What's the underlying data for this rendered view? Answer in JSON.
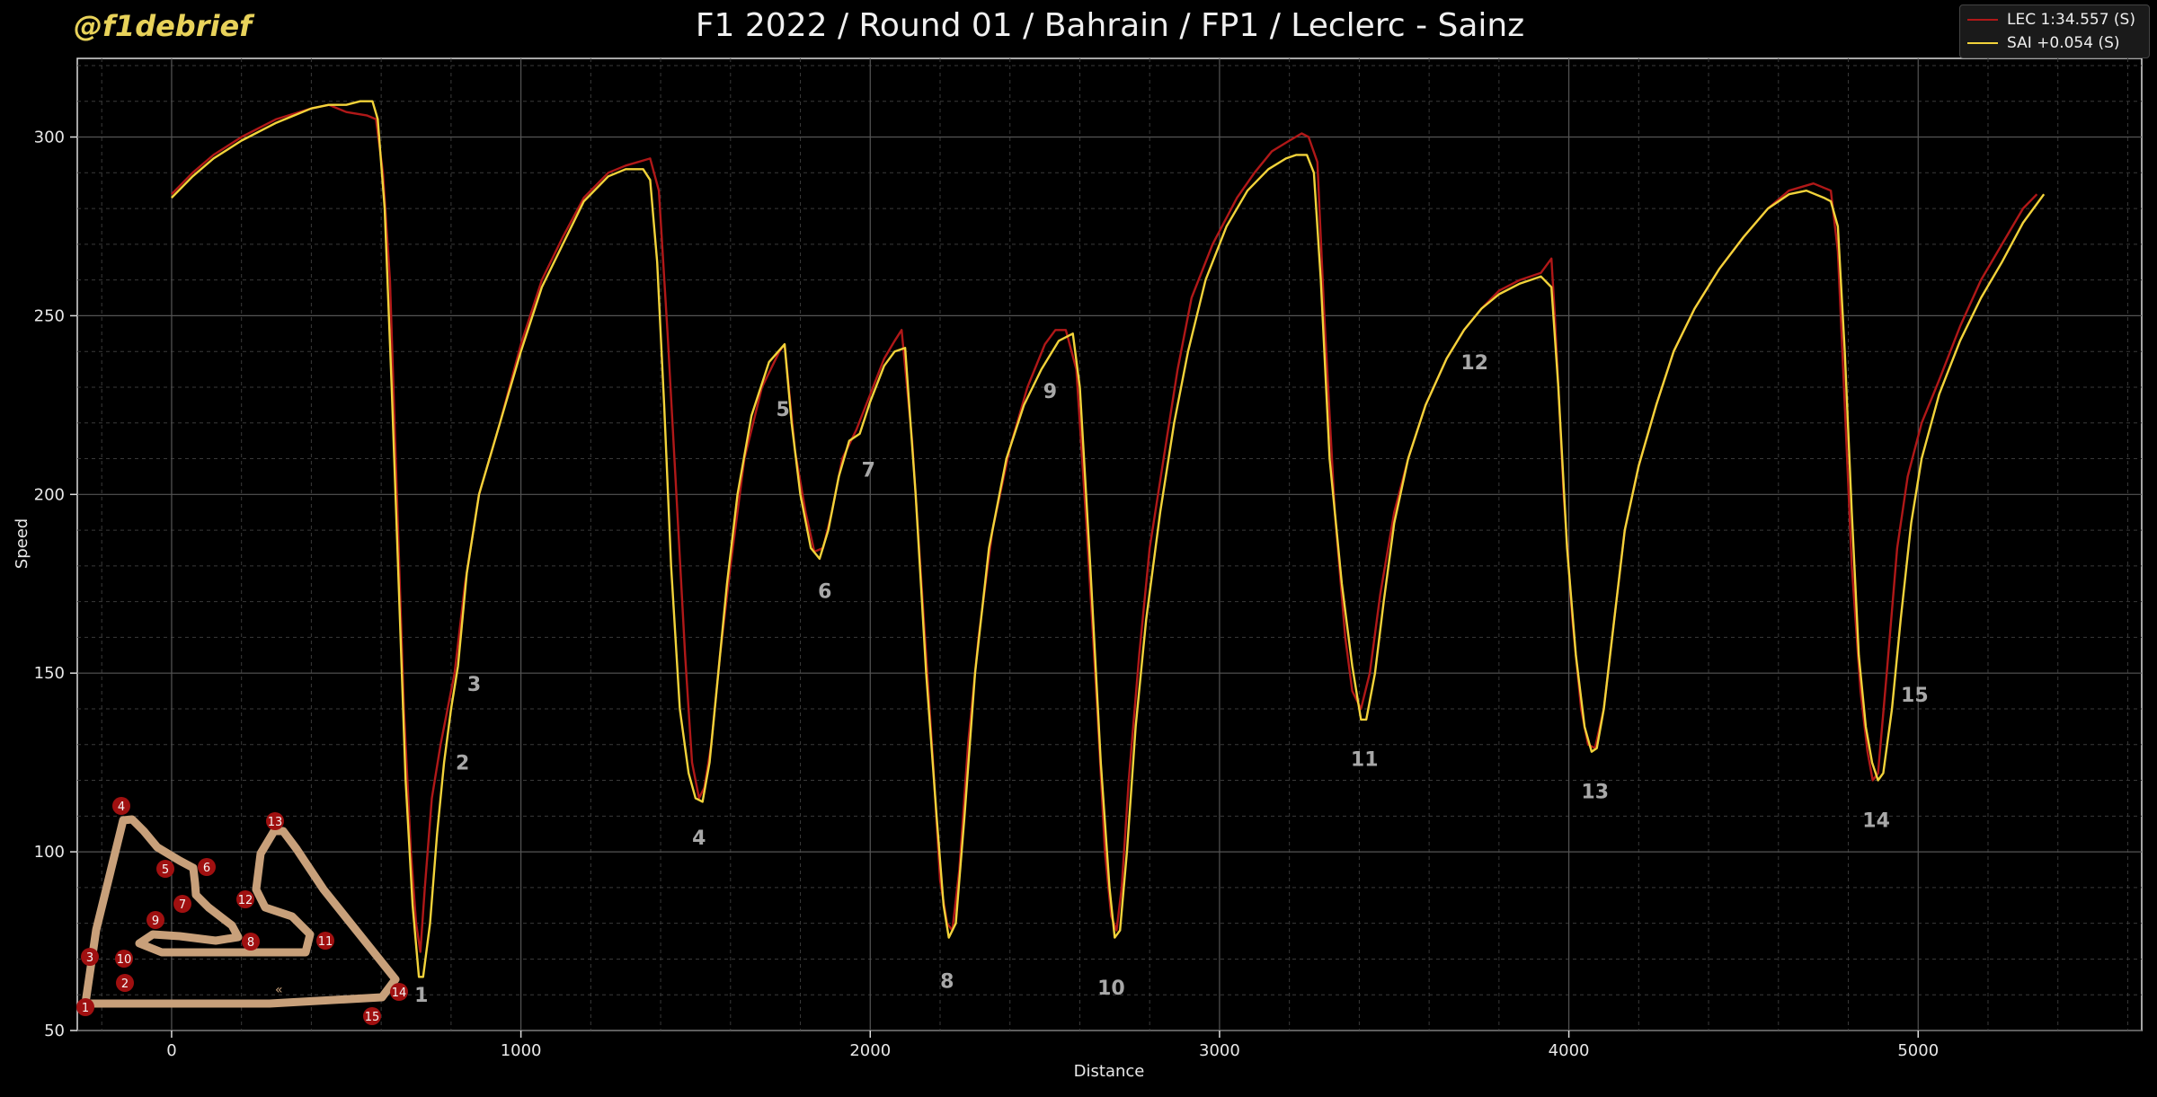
{
  "brand": "@f1debrief",
  "chart_data": {
    "type": "line",
    "title": "F1 2022 / Round 01 / Bahrain / FP1 / Leclerc - Sainz",
    "xlabel": "Distance",
    "ylabel": "Speed",
    "xlim": [
      -270,
      5640
    ],
    "ylim": [
      50,
      322
    ],
    "xticks": [
      0,
      1000,
      2000,
      3000,
      4000,
      5000
    ],
    "yticks": [
      50,
      100,
      150,
      200,
      250,
      300
    ],
    "grid": true,
    "legend_position": "top-right",
    "series": [
      {
        "name": "LEC 1:34.557 (S)",
        "color": "#b01818",
        "points": [
          [
            0,
            284
          ],
          [
            60,
            290
          ],
          [
            120,
            295
          ],
          [
            200,
            300
          ],
          [
            300,
            305
          ],
          [
            400,
            308
          ],
          [
            450,
            309
          ],
          [
            500,
            307
          ],
          [
            560,
            306
          ],
          [
            585,
            305
          ],
          [
            605,
            290
          ],
          [
            625,
            260
          ],
          [
            645,
            200
          ],
          [
            665,
            140
          ],
          [
            685,
            100
          ],
          [
            700,
            80
          ],
          [
            712,
            72
          ],
          [
            725,
            90
          ],
          [
            745,
            115
          ],
          [
            770,
            130
          ],
          [
            790,
            140
          ],
          [
            810,
            150
          ],
          [
            840,
            175
          ],
          [
            880,
            200
          ],
          [
            940,
            220
          ],
          [
            1000,
            242
          ],
          [
            1060,
            260
          ],
          [
            1120,
            272
          ],
          [
            1180,
            283
          ],
          [
            1250,
            290
          ],
          [
            1300,
            292
          ],
          [
            1370,
            294
          ],
          [
            1395,
            285
          ],
          [
            1420,
            245
          ],
          [
            1445,
            200
          ],
          [
            1470,
            155
          ],
          [
            1490,
            125
          ],
          [
            1510,
            115
          ],
          [
            1525,
            118
          ],
          [
            1545,
            130
          ],
          [
            1570,
            155
          ],
          [
            1600,
            180
          ],
          [
            1640,
            210
          ],
          [
            1690,
            230
          ],
          [
            1740,
            240
          ],
          [
            1755,
            242
          ],
          [
            1785,
            212
          ],
          [
            1815,
            195
          ],
          [
            1840,
            184
          ],
          [
            1865,
            185
          ],
          [
            1890,
            195
          ],
          [
            1920,
            210
          ],
          [
            1960,
            218
          ],
          [
            2000,
            228
          ],
          [
            2040,
            238
          ],
          [
            2070,
            243
          ],
          [
            2090,
            246
          ],
          [
            2120,
            215
          ],
          [
            2150,
            170
          ],
          [
            2180,
            125
          ],
          [
            2200,
            92
          ],
          [
            2220,
            80
          ],
          [
            2235,
            78
          ],
          [
            2255,
            95
          ],
          [
            2280,
            130
          ],
          [
            2310,
            160
          ],
          [
            2350,
            190
          ],
          [
            2400,
            213
          ],
          [
            2450,
            230
          ],
          [
            2500,
            242
          ],
          [
            2530,
            246
          ],
          [
            2560,
            246
          ],
          [
            2590,
            235
          ],
          [
            2620,
            190
          ],
          [
            2650,
            140
          ],
          [
            2672,
            100
          ],
          [
            2690,
            82
          ],
          [
            2705,
            78
          ],
          [
            2720,
            90
          ],
          [
            2740,
            120
          ],
          [
            2770,
            155
          ],
          [
            2800,
            185
          ],
          [
            2840,
            210
          ],
          [
            2880,
            235
          ],
          [
            2920,
            255
          ],
          [
            2980,
            270
          ],
          [
            3050,
            283
          ],
          [
            3100,
            290
          ],
          [
            3150,
            296
          ],
          [
            3200,
            299
          ],
          [
            3235,
            301
          ],
          [
            3255,
            300
          ],
          [
            3280,
            293
          ],
          [
            3300,
            250
          ],
          [
            3330,
            195
          ],
          [
            3360,
            160
          ],
          [
            3380,
            145
          ],
          [
            3405,
            140
          ],
          [
            3430,
            150
          ],
          [
            3460,
            172
          ],
          [
            3500,
            195
          ],
          [
            3540,
            210
          ],
          [
            3590,
            225
          ],
          [
            3650,
            238
          ],
          [
            3700,
            246
          ],
          [
            3750,
            252
          ],
          [
            3800,
            257
          ],
          [
            3860,
            260
          ],
          [
            3920,
            262
          ],
          [
            3950,
            266
          ],
          [
            3960,
            250
          ],
          [
            3985,
            200
          ],
          [
            4010,
            165
          ],
          [
            4035,
            140
          ],
          [
            4055,
            130
          ],
          [
            4075,
            129
          ],
          [
            4100,
            140
          ],
          [
            4130,
            165
          ],
          [
            4160,
            190
          ],
          [
            4200,
            208
          ],
          [
            4250,
            225
          ],
          [
            4300,
            240
          ],
          [
            4360,
            252
          ],
          [
            4430,
            263
          ],
          [
            4500,
            272
          ],
          [
            4570,
            280
          ],
          [
            4630,
            285
          ],
          [
            4700,
            287
          ],
          [
            4750,
            285
          ],
          [
            4770,
            268
          ],
          [
            4790,
            225
          ],
          [
            4810,
            180
          ],
          [
            4835,
            145
          ],
          [
            4855,
            128
          ],
          [
            4870,
            120
          ],
          [
            4885,
            122
          ],
          [
            4910,
            150
          ],
          [
            4940,
            185
          ],
          [
            4970,
            205
          ],
          [
            5010,
            220
          ],
          [
            5060,
            232
          ],
          [
            5120,
            247
          ],
          [
            5180,
            260
          ],
          [
            5240,
            270
          ],
          [
            5300,
            280
          ],
          [
            5340,
            284
          ]
        ]
      },
      {
        "name": "SAI +0.054 (S)",
        "color": "#f2d33a",
        "points": [
          [
            0,
            283
          ],
          [
            60,
            289
          ],
          [
            120,
            294
          ],
          [
            200,
            299
          ],
          [
            300,
            304
          ],
          [
            400,
            308
          ],
          [
            450,
            309
          ],
          [
            500,
            309
          ],
          [
            540,
            310
          ],
          [
            575,
            310
          ],
          [
            590,
            305
          ],
          [
            610,
            280
          ],
          [
            630,
            230
          ],
          [
            650,
            175
          ],
          [
            670,
            120
          ],
          [
            690,
            85
          ],
          [
            708,
            65
          ],
          [
            720,
            65
          ],
          [
            740,
            80
          ],
          [
            760,
            105
          ],
          [
            780,
            125
          ],
          [
            800,
            140
          ],
          [
            820,
            152
          ],
          [
            845,
            178
          ],
          [
            880,
            200
          ],
          [
            940,
            220
          ],
          [
            1000,
            240
          ],
          [
            1060,
            258
          ],
          [
            1120,
            270
          ],
          [
            1180,
            282
          ],
          [
            1250,
            289
          ],
          [
            1300,
            291
          ],
          [
            1350,
            291
          ],
          [
            1370,
            288
          ],
          [
            1390,
            265
          ],
          [
            1410,
            225
          ],
          [
            1430,
            180
          ],
          [
            1455,
            140
          ],
          [
            1480,
            122
          ],
          [
            1500,
            115
          ],
          [
            1520,
            114
          ],
          [
            1540,
            125
          ],
          [
            1565,
            150
          ],
          [
            1590,
            175
          ],
          [
            1620,
            200
          ],
          [
            1660,
            222
          ],
          [
            1710,
            237
          ],
          [
            1755,
            242
          ],
          [
            1775,
            220
          ],
          [
            1800,
            200
          ],
          [
            1830,
            185
          ],
          [
            1855,
            182
          ],
          [
            1880,
            190
          ],
          [
            1910,
            205
          ],
          [
            1940,
            215
          ],
          [
            1970,
            217
          ],
          [
            2000,
            226
          ],
          [
            2040,
            236
          ],
          [
            2070,
            240
          ],
          [
            2100,
            241
          ],
          [
            2130,
            200
          ],
          [
            2160,
            150
          ],
          [
            2190,
            110
          ],
          [
            2210,
            85
          ],
          [
            2225,
            76
          ],
          [
            2245,
            80
          ],
          [
            2270,
            110
          ],
          [
            2300,
            150
          ],
          [
            2340,
            185
          ],
          [
            2390,
            210
          ],
          [
            2440,
            225
          ],
          [
            2490,
            235
          ],
          [
            2540,
            243
          ],
          [
            2580,
            245
          ],
          [
            2600,
            230
          ],
          [
            2630,
            180
          ],
          [
            2660,
            125
          ],
          [
            2685,
            90
          ],
          [
            2700,
            76
          ],
          [
            2715,
            78
          ],
          [
            2735,
            100
          ],
          [
            2760,
            135
          ],
          [
            2790,
            165
          ],
          [
            2830,
            195
          ],
          [
            2870,
            220
          ],
          [
            2910,
            240
          ],
          [
            2960,
            260
          ],
          [
            3020,
            275
          ],
          [
            3080,
            285
          ],
          [
            3140,
            291
          ],
          [
            3190,
            294
          ],
          [
            3220,
            295
          ],
          [
            3250,
            295
          ],
          [
            3270,
            290
          ],
          [
            3290,
            260
          ],
          [
            3315,
            210
          ],
          [
            3350,
            175
          ],
          [
            3380,
            152
          ],
          [
            3405,
            137
          ],
          [
            3420,
            137
          ],
          [
            3445,
            150
          ],
          [
            3470,
            170
          ],
          [
            3500,
            192
          ],
          [
            3540,
            210
          ],
          [
            3590,
            225
          ],
          [
            3650,
            238
          ],
          [
            3700,
            246
          ],
          [
            3750,
            252
          ],
          [
            3800,
            256
          ],
          [
            3860,
            259
          ],
          [
            3920,
            261
          ],
          [
            3950,
            258
          ],
          [
            3970,
            230
          ],
          [
            3995,
            185
          ],
          [
            4020,
            155
          ],
          [
            4045,
            135
          ],
          [
            4065,
            128
          ],
          [
            4080,
            129
          ],
          [
            4100,
            140
          ],
          [
            4130,
            165
          ],
          [
            4160,
            190
          ],
          [
            4200,
            208
          ],
          [
            4250,
            225
          ],
          [
            4300,
            240
          ],
          [
            4360,
            252
          ],
          [
            4430,
            263
          ],
          [
            4500,
            272
          ],
          [
            4570,
            280
          ],
          [
            4630,
            284
          ],
          [
            4680,
            285
          ],
          [
            4730,
            283
          ],
          [
            4750,
            282
          ],
          [
            4770,
            275
          ],
          [
            4790,
            240
          ],
          [
            4810,
            195
          ],
          [
            4830,
            155
          ],
          [
            4850,
            135
          ],
          [
            4868,
            125
          ],
          [
            4885,
            120
          ],
          [
            4900,
            122
          ],
          [
            4925,
            140
          ],
          [
            4950,
            165
          ],
          [
            4980,
            192
          ],
          [
            5010,
            210
          ],
          [
            5060,
            228
          ],
          [
            5120,
            243
          ],
          [
            5180,
            255
          ],
          [
            5240,
            265
          ],
          [
            5300,
            276
          ],
          [
            5360,
            284
          ]
        ]
      }
    ],
    "corners": [
      {
        "label": "1",
        "x": 715,
        "y": 58
      },
      {
        "label": "2",
        "x": 833,
        "y": 123
      },
      {
        "label": "3",
        "x": 866,
        "y": 145
      },
      {
        "label": "4",
        "x": 1510,
        "y": 102
      },
      {
        "label": "5",
        "x": 1750,
        "y": 222
      },
      {
        "label": "6",
        "x": 1870,
        "y": 171
      },
      {
        "label": "7",
        "x": 1995,
        "y": 205
      },
      {
        "label": "8",
        "x": 2220,
        "y": 62
      },
      {
        "label": "9",
        "x": 2515,
        "y": 227
      },
      {
        "label": "10",
        "x": 2690,
        "y": 60
      },
      {
        "label": "11",
        "x": 3415,
        "y": 124
      },
      {
        "label": "12",
        "x": 3730,
        "y": 235
      },
      {
        "label": "13",
        "x": 4075,
        "y": 115
      },
      {
        "label": "14",
        "x": 4880,
        "y": 107
      },
      {
        "label": "15",
        "x": 4990,
        "y": 142
      }
    ],
    "track_map_corners": [
      "1",
      "2",
      "3",
      "4",
      "5",
      "6",
      "7",
      "8",
      "9",
      "10",
      "11",
      "12",
      "13",
      "14",
      "15"
    ]
  }
}
